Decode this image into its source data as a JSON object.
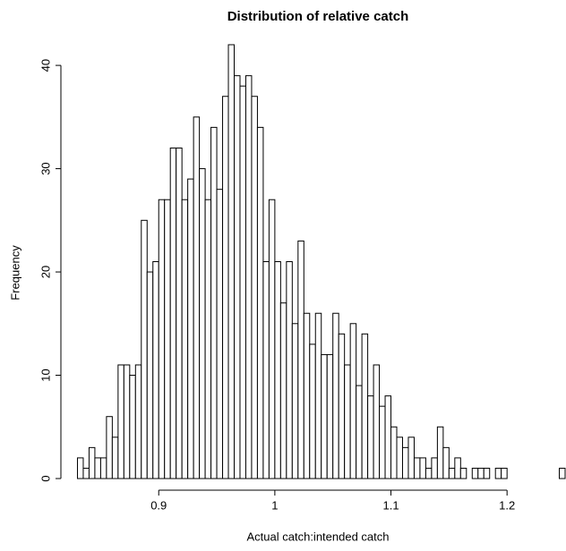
{
  "chart_data": {
    "type": "histogram",
    "title": "Distribution of relative catch",
    "x_label": "Actual catch:intended catch",
    "y_label": "Frequency",
    "bins": [
      0.83,
      0.835,
      0.84,
      0.845,
      0.85,
      0.855,
      0.86,
      0.865,
      0.87,
      0.875,
      0.88,
      0.885,
      0.89,
      0.895,
      0.9,
      0.905,
      0.91,
      0.915,
      0.92,
      0.925,
      0.93,
      0.935,
      0.94,
      0.945,
      0.95,
      0.955,
      0.96,
      0.965,
      0.97,
      0.975,
      0.98,
      0.985,
      0.99,
      0.995,
      1.0,
      1.005,
      1.01,
      1.015,
      1.02,
      1.025,
      1.03,
      1.035,
      1.04,
      1.045,
      1.05,
      1.055,
      1.06,
      1.065,
      1.07,
      1.075,
      1.08,
      1.085,
      1.09,
      1.095,
      1.1,
      1.105,
      1.11,
      1.115,
      1.12,
      1.125,
      1.13,
      1.135,
      1.14,
      1.145,
      1.15,
      1.155,
      1.16,
      1.165,
      1.17,
      1.175,
      1.18,
      1.185,
      1.19,
      1.195,
      1.2,
      1.205,
      1.21,
      1.215,
      1.22,
      1.225,
      1.23,
      1.235,
      1.24,
      1.245,
      1.25
    ],
    "values": [
      2,
      1,
      3,
      2,
      2,
      6,
      4,
      11,
      11,
      10,
      11,
      25,
      20,
      21,
      27,
      27,
      32,
      32,
      27,
      29,
      35,
      30,
      27,
      34,
      28,
      37,
      42,
      39,
      38,
      39,
      37,
      34,
      21,
      27,
      21,
      17,
      21,
      15,
      23,
      16,
      13,
      16,
      12,
      12,
      16,
      14,
      11,
      15,
      9,
      14,
      8,
      11,
      7,
      8,
      5,
      4,
      3,
      4,
      2,
      2,
      1,
      2,
      5,
      3,
      1,
      2,
      1,
      0,
      1,
      1,
      1,
      0,
      1,
      1,
      0,
      0,
      0,
      0,
      0,
      0,
      0,
      0,
      0,
      1
    ],
    "color": "#ffffff",
    "xlim": [
      0.825,
      1.25
    ],
    "ylim": [
      0,
      42
    ],
    "xticks": [
      0.9,
      1.0,
      1.1,
      1.2
    ],
    "yticks": [
      0,
      10,
      20,
      30,
      40
    ]
  }
}
